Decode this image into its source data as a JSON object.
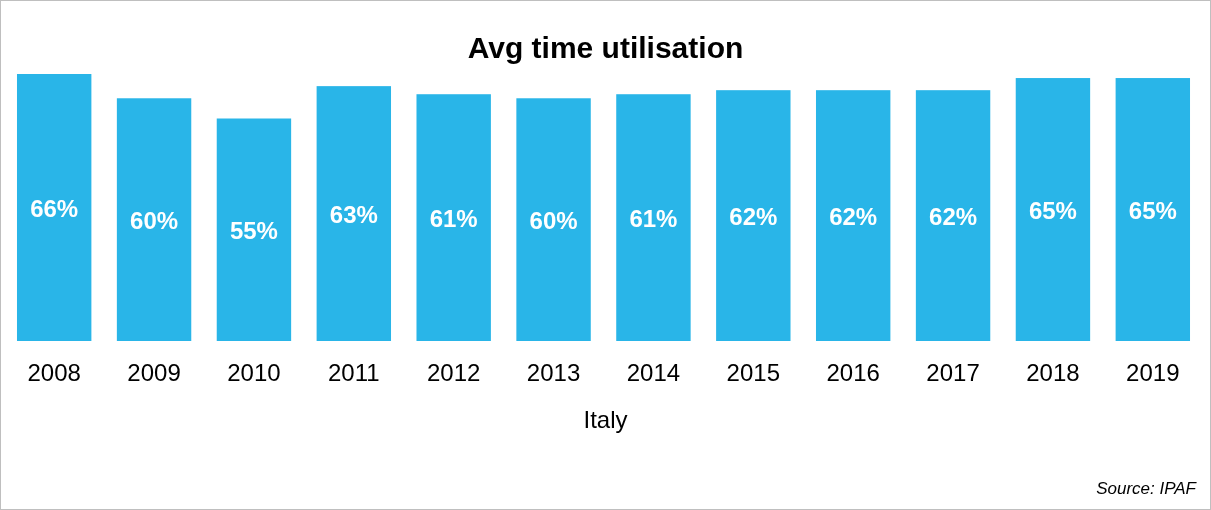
{
  "chart_data": {
    "type": "bar",
    "title": "Avg time utilisation",
    "xlabel": "Italy",
    "categories": [
      "2008",
      "2009",
      "2010",
      "2011",
      "2012",
      "2013",
      "2014",
      "2015",
      "2016",
      "2017",
      "2018",
      "2019"
    ],
    "values": [
      66,
      60,
      55,
      63,
      61,
      60,
      61,
      62,
      62,
      62,
      65,
      65
    ],
    "value_labels": [
      "66%",
      "60%",
      "55%",
      "63%",
      "61%",
      "60%",
      "61%",
      "62%",
      "62%",
      "62%",
      "65%",
      "65%"
    ],
    "color": "#29b5e8",
    "annotations": [
      "Source: IPAF"
    ]
  }
}
